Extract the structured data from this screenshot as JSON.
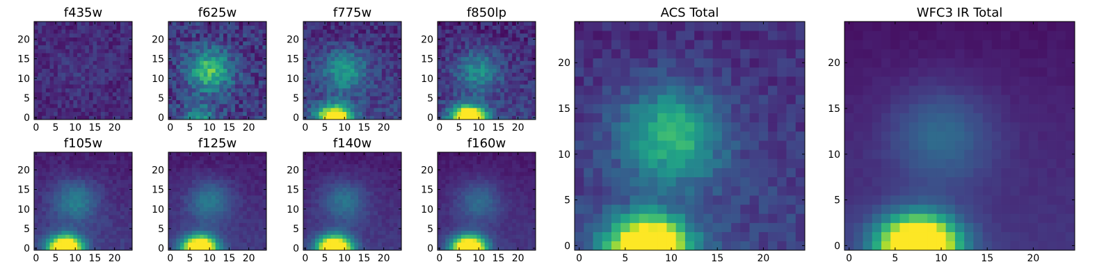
{
  "chart_data": [
    {
      "type": "heatmap",
      "title": "f435w",
      "xticks": [
        "0",
        "5",
        "10",
        "15",
        "20"
      ],
      "yticks": [
        "0",
        "5",
        "10",
        "15",
        "20"
      ],
      "xlim": [
        -0.5,
        24.5
      ],
      "ylim": [
        -0.5,
        24.5
      ],
      "colormap": "viridis",
      "noise": 0.42,
      "peak": 0.2,
      "floor": 0.45,
      "core": 0.0,
      "blob": 0.18,
      "seed": 11
    },
    {
      "type": "heatmap",
      "title": "f625w",
      "xticks": [
        "0",
        "5",
        "10",
        "15",
        "20"
      ],
      "yticks": [
        "0",
        "5",
        "10",
        "15",
        "20"
      ],
      "xlim": [
        -0.5,
        24.5
      ],
      "ylim": [
        -0.5,
        24.5
      ],
      "colormap": "viridis",
      "noise": 0.15,
      "peak": 0.85,
      "floor": 0.18,
      "core": 0.25,
      "blob": 0.55,
      "seed": 23
    },
    {
      "type": "heatmap",
      "title": "f775w",
      "xticks": [
        "0",
        "5",
        "10",
        "15",
        "20"
      ],
      "yticks": [
        "0",
        "5",
        "10",
        "15",
        "20"
      ],
      "xlim": [
        -0.5,
        24.5
      ],
      "ylim": [
        -0.5,
        24.5
      ],
      "colormap": "viridis",
      "noise": 0.1,
      "peak": 1.0,
      "floor": 0.12,
      "core": 0.7,
      "blob": 0.32,
      "seed": 37
    },
    {
      "type": "heatmap",
      "title": "f850lp",
      "xticks": [
        "0",
        "5",
        "10",
        "15",
        "20"
      ],
      "yticks": [
        "0",
        "5",
        "10",
        "15",
        "20"
      ],
      "xlim": [
        -0.5,
        24.5
      ],
      "ylim": [
        -0.5,
        24.5
      ],
      "colormap": "viridis",
      "noise": 0.1,
      "peak": 1.0,
      "floor": 0.1,
      "core": 0.75,
      "blob": 0.28,
      "seed": 41
    },
    {
      "type": "heatmap",
      "title": "f105w",
      "xticks": [
        "0",
        "5",
        "10",
        "15",
        "20"
      ],
      "yticks": [
        "0",
        "5",
        "10",
        "15",
        "20"
      ],
      "xlim": [
        -0.5,
        24.5
      ],
      "ylim": [
        -0.5,
        24.5
      ],
      "colormap": "viridis",
      "noise": 0.04,
      "peak": 1.0,
      "floor": 0.08,
      "core": 0.85,
      "blob": 0.25,
      "seed": 53
    },
    {
      "type": "heatmap",
      "title": "f125w",
      "xticks": [
        "0",
        "5",
        "10",
        "15",
        "20"
      ],
      "yticks": [
        "0",
        "5",
        "10",
        "15",
        "20"
      ],
      "xlim": [
        -0.5,
        24.5
      ],
      "ylim": [
        -0.5,
        24.5
      ],
      "colormap": "viridis",
      "noise": 0.035,
      "peak": 1.0,
      "floor": 0.07,
      "core": 0.85,
      "blob": 0.24,
      "seed": 61
    },
    {
      "type": "heatmap",
      "title": "f140w",
      "xticks": [
        "0",
        "5",
        "10",
        "15",
        "20"
      ],
      "yticks": [
        "0",
        "5",
        "10",
        "15",
        "20"
      ],
      "xlim": [
        -0.5,
        24.5
      ],
      "ylim": [
        -0.5,
        24.5
      ],
      "colormap": "viridis",
      "noise": 0.035,
      "peak": 1.0,
      "floor": 0.07,
      "core": 0.85,
      "blob": 0.22,
      "seed": 71
    },
    {
      "type": "heatmap",
      "title": "f160w",
      "xticks": [
        "0",
        "5",
        "10",
        "15",
        "20"
      ],
      "yticks": [
        "0",
        "5",
        "10",
        "15",
        "20"
      ],
      "xlim": [
        -0.5,
        24.5
      ],
      "ylim": [
        -0.5,
        24.5
      ],
      "colormap": "viridis",
      "noise": 0.03,
      "peak": 1.0,
      "floor": 0.06,
      "core": 0.85,
      "blob": 0.2,
      "seed": 79
    },
    {
      "type": "heatmap",
      "title": "ACS Total",
      "xticks": [
        "0",
        "5",
        "10",
        "15",
        "20"
      ],
      "yticks": [
        "0",
        "5",
        "10",
        "15",
        "20"
      ],
      "xlim": [
        -0.5,
        24.5
      ],
      "ylim": [
        -0.5,
        24.5
      ],
      "colormap": "viridis",
      "noise": 0.07,
      "peak": 1.0,
      "floor": 0.12,
      "core": 0.75,
      "blob": 0.42,
      "seed": 89
    },
    {
      "type": "heatmap",
      "title": "WFC3 IR Total",
      "xticks": [
        "0",
        "5",
        "10",
        "15",
        "20"
      ],
      "yticks": [
        "0",
        "5",
        "10",
        "15",
        "20"
      ],
      "xlim": [
        -0.5,
        24.5
      ],
      "ylim": [
        -0.5,
        24.5
      ],
      "colormap": "viridis",
      "noise": 0.015,
      "peak": 1.0,
      "floor": 0.05,
      "core": 0.9,
      "blob": 0.2,
      "seed": 97
    }
  ]
}
